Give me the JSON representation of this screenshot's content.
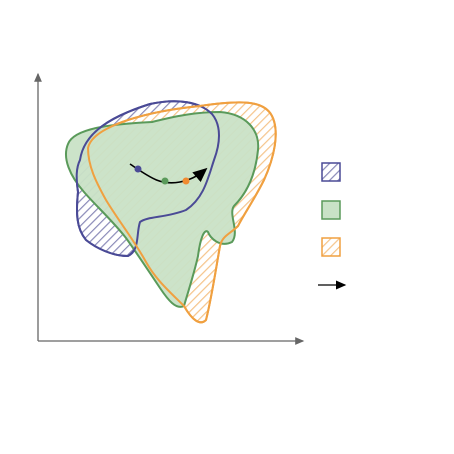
{
  "diagram": {
    "regions": [
      {
        "name": "purple-hatched-region",
        "stroke": "#4a4a96",
        "fill_style": "hatched"
      },
      {
        "name": "green-solid-region",
        "stroke": "#5a9a5a",
        "fill": "#c9e2c6",
        "fill_style": "solid"
      },
      {
        "name": "orange-hatched-region",
        "stroke": "#f0a040",
        "fill_style": "hatched"
      }
    ],
    "trajectory": {
      "points": [
        {
          "name": "start-point",
          "color": "#4a4a96"
        },
        {
          "name": "middle-point",
          "color": "#5a9a5a"
        },
        {
          "name": "end-point",
          "color": "#f08a30"
        }
      ],
      "arrow_color": "#000000"
    },
    "legend": [
      {
        "name": "legend-purple-hatched",
        "label": ""
      },
      {
        "name": "legend-green-solid",
        "label": ""
      },
      {
        "name": "legend-orange-hatched",
        "label": ""
      },
      {
        "name": "legend-arrow",
        "label": ""
      }
    ],
    "axes": {
      "color": "#666666",
      "x_label": "",
      "y_label": ""
    }
  }
}
